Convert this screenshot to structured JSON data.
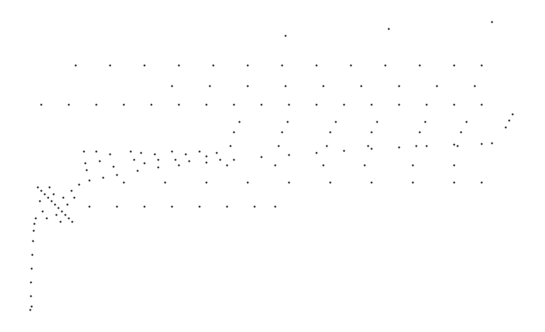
{
  "chart_data": {
    "type": "scatter",
    "xlim": [
      0,
      792
    ],
    "ylim": [
      0,
      482
    ],
    "tick_labels": false,
    "grid": false,
    "color": "#000000",
    "marker": "circle",
    "x": [
      44,
      45,
      45,
      46,
      47,
      48,
      49,
      50,
      52,
      46,
      55,
      60,
      65,
      70,
      75,
      80,
      85,
      90,
      95,
      100,
      105,
      58,
      62,
      68,
      72,
      78,
      82,
      88,
      92,
      98,
      104,
      108,
      115,
      130,
      150,
      170,
      200,
      230,
      260,
      300,
      340,
      380,
      420,
      460,
      500,
      540,
      580,
      620,
      660,
      700,
      715,
      122,
      124,
      126,
      140,
      145,
      160,
      165,
      190,
      195,
      205,
      210,
      225,
      230,
      250,
      255,
      270,
      275,
      290,
      300,
      315,
      320,
      330,
      335,
      340,
      348,
      400,
      405,
      410,
      418,
      470,
      475,
      480,
      488,
      530,
      535,
      540,
      548,
      600,
      605,
      610,
      618,
      660,
      665,
      670,
      678,
      60,
      100,
      140,
      180,
      220,
      260,
      300,
      340,
      380,
      420,
      460,
      500,
      540,
      580,
      620,
      660,
      700,
      110,
      160,
      210,
      260,
      310,
      360,
      410,
      460,
      510,
      560,
      610,
      660,
      700,
      250,
      305,
      360,
      415,
      470,
      525,
      580,
      635,
      690,
      130,
      170,
      210,
      250,
      290,
      330,
      370,
      400,
      180,
      240,
      300,
      360,
      420,
      480,
      540,
      600,
      660,
      700,
      415,
      565,
      715,
      735,
      740,
      745
    ],
    "values": [
      32,
      52,
      72,
      92,
      112,
      132,
      147,
      157,
      165,
      37,
      210,
      205,
      200,
      195,
      190,
      185,
      180,
      175,
      170,
      165,
      160,
      190,
      175,
      165,
      210,
      200,
      170,
      160,
      195,
      185,
      205,
      195,
      214,
      220,
      224,
      228,
      234,
      239,
      242,
      246,
      250,
      254,
      257,
      260,
      263,
      266,
      268,
      270,
      272,
      273,
      274,
      262,
      245,
      235,
      262,
      248,
      258,
      240,
      262,
      250,
      260,
      245,
      258,
      250,
      262,
      250,
      258,
      248,
      262,
      255,
      260,
      250,
      242,
      270,
      290,
      305,
      242,
      270,
      290,
      305,
      242,
      270,
      290,
      305,
      242,
      270,
      290,
      305,
      242,
      270,
      290,
      305,
      242,
      270,
      290,
      305,
      330,
      330,
      330,
      330,
      330,
      330,
      330,
      330,
      330,
      330,
      330,
      330,
      330,
      330,
      330,
      330,
      330,
      387,
      387,
      387,
      387,
      387,
      387,
      387,
      387,
      387,
      387,
      387,
      387,
      387,
      357,
      357,
      357,
      357,
      357,
      357,
      357,
      357,
      357,
      182,
      182,
      182,
      182,
      182,
      182,
      182,
      182,
      217,
      217,
      217,
      217,
      217,
      217,
      217,
      217,
      217,
      217,
      430,
      440,
      450,
      297,
      307,
      316
    ]
  }
}
